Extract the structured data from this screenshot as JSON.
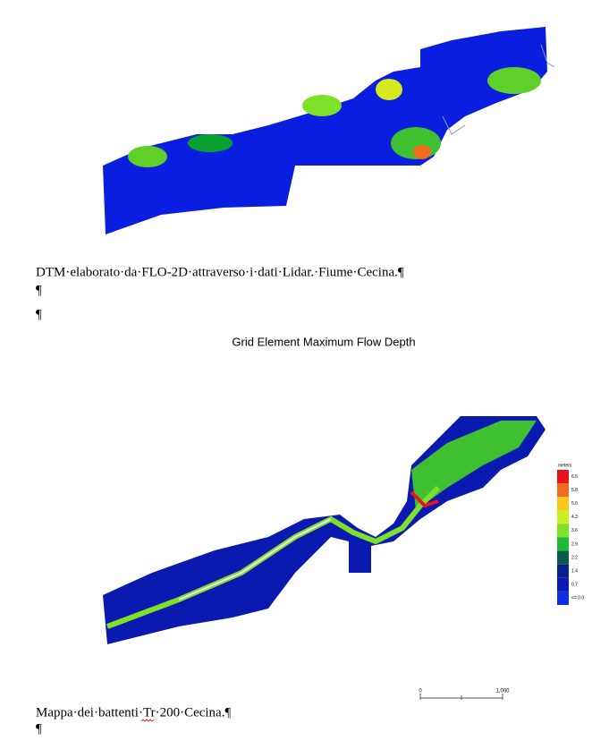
{
  "captions": [
    "DTM·elaborato·da·FLO-2D·attraverso·i·dati·Lidar.·Fiume·Cecina.¶",
    "Mappa·dei·battenti·Tr·200·Cecina.¶"
  ],
  "pilcrows": [
    "¶",
    "¶",
    "¶"
  ],
  "figure_title": "Grid Element Maximum Flow Depth",
  "legend": {
    "title": "meters",
    "items": [
      {
        "label": "6.5",
        "color": "#e8141c"
      },
      {
        "label": "5.8",
        "color": "#f26a1e"
      },
      {
        "label": "5.0",
        "color": "#f7c81a"
      },
      {
        "label": "4.3",
        "color": "#c8f01e"
      },
      {
        "label": "3.6",
        "color": "#7fe02a"
      },
      {
        "label": "2.9",
        "color": "#1fb83a"
      },
      {
        "label": "2.2",
        "color": "#0b5a4a"
      },
      {
        "label": "1.4",
        "color": "#0a1e8a"
      },
      {
        "label": "0.7",
        "color": "#0b1ab0"
      },
      {
        "label": "<= 0.0",
        "color": "#1030e0"
      }
    ]
  },
  "scale_bar": {
    "start": "0",
    "end": "1,000"
  }
}
